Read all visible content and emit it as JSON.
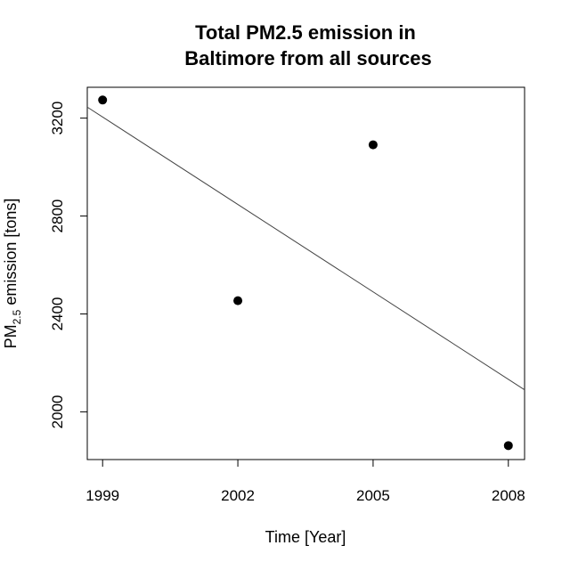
{
  "chart_data": {
    "type": "scatter",
    "title_lines": [
      "Total PM2.5 emission in",
      "Baltimore from all sources"
    ],
    "xlabel": "Time [Year]",
    "ylabel": {
      "prefix": "PM",
      "subscript": "2.5",
      "suffix": " emission [tons]"
    },
    "x_ticks": [
      1999,
      2002,
      2005,
      2008
    ],
    "y_ticks": [
      2000,
      2400,
      2800,
      3200
    ],
    "xlim": [
      1998.66,
      2008.36
    ],
    "ylim": [
      1805,
      3326
    ],
    "points": [
      {
        "x": 1999,
        "y": 3274
      },
      {
        "x": 2002,
        "y": 2454
      },
      {
        "x": 2005,
        "y": 3091
      },
      {
        "x": 2008,
        "y": 1862
      }
    ],
    "trend_line": {
      "x": [
        1998.66,
        2008.36
      ],
      "y": [
        3245,
        2090
      ]
    },
    "grid": false,
    "box": true
  }
}
